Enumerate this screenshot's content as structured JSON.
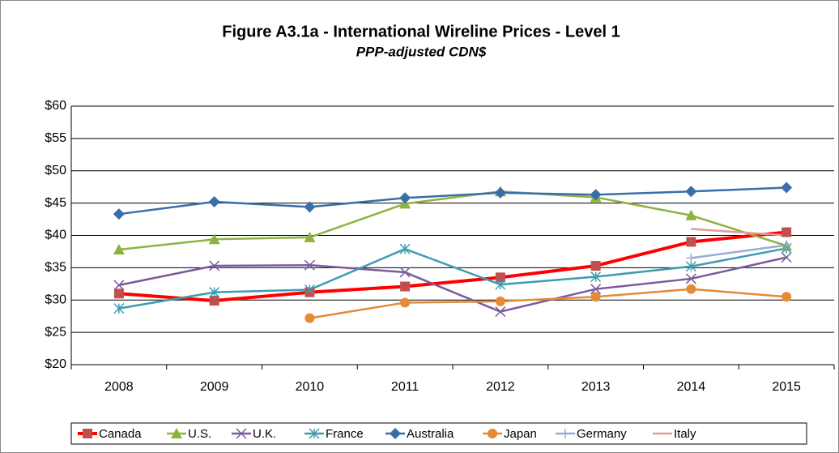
{
  "chart_data": {
    "type": "line",
    "title": "Figure A3.1a - International Wireline Prices - Level 1",
    "subtitle": "PPP-adjusted CDN$",
    "categories": [
      "2008",
      "2009",
      "2010",
      "2011",
      "2012",
      "2013",
      "2014",
      "2015"
    ],
    "ylim": [
      20,
      60
    ],
    "yticks": [
      {
        "value": 20,
        "label": "$20"
      },
      {
        "value": 25,
        "label": "$25"
      },
      {
        "value": 30,
        "label": "$30"
      },
      {
        "value": 35,
        "label": "$35"
      },
      {
        "value": 40,
        "label": "$40"
      },
      {
        "value": 45,
        "label": "$45"
      },
      {
        "value": 50,
        "label": "$50"
      },
      {
        "value": 55,
        "label": "$55"
      },
      {
        "value": 60,
        "label": "$60"
      }
    ],
    "grid": true,
    "legend": "bottom",
    "series": [
      {
        "name": "Canada",
        "color": "#ff0000",
        "marker": "square",
        "values": [
          31,
          29.9,
          31.2,
          32.1,
          33.5,
          35.3,
          39,
          40.5
        ]
      },
      {
        "name": "U.S.",
        "color": "#8db33e",
        "marker": "triangle",
        "values": [
          37.8,
          39.4,
          39.7,
          44.9,
          46.8,
          45.9,
          43.1,
          38.4
        ]
      },
      {
        "name": "U.K.",
        "color": "#7b5a9b",
        "marker": "x",
        "values": [
          32.3,
          35.3,
          35.4,
          34.3,
          28.2,
          31.7,
          33.3,
          36.6
        ]
      },
      {
        "name": "France",
        "color": "#3d9cb0",
        "marker": "star",
        "values": [
          28.7,
          31.2,
          31.6,
          37.9,
          32.4,
          33.6,
          35.2,
          38.0
        ]
      },
      {
        "name": "Australia",
        "color": "#3a6ea8",
        "marker": "diamond",
        "values": [
          43.3,
          45.2,
          44.4,
          45.8,
          46.6,
          46.3,
          46.8,
          47.4
        ]
      },
      {
        "name": "Japan",
        "color": "#e58a35",
        "marker": "circle",
        "values": [
          null,
          null,
          27.2,
          29.6,
          29.8,
          30.5,
          31.7,
          30.5
        ]
      },
      {
        "name": "Germany",
        "color": "#97aed8",
        "marker": "plus",
        "values": [
          null,
          null,
          null,
          null,
          null,
          null,
          36.5,
          38.5
        ]
      },
      {
        "name": "Italy",
        "color": "#e49a9a",
        "marker": "none",
        "values": [
          null,
          null,
          null,
          null,
          null,
          null,
          41,
          40
        ]
      }
    ]
  }
}
